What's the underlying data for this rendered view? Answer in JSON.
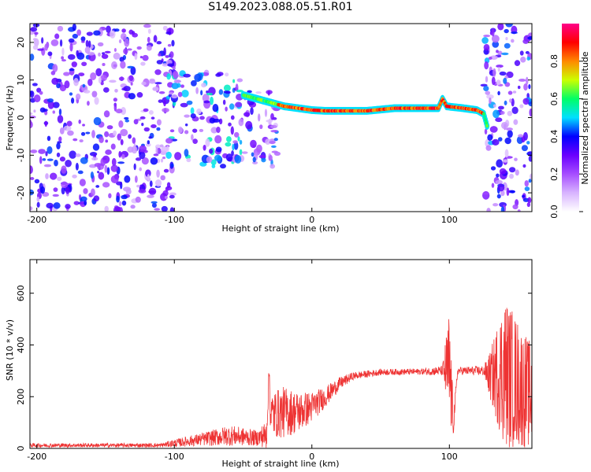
{
  "title": "S149.2023.088.05.51.R01",
  "chart_data": [
    {
      "type": "heatmap",
      "title": "S149.2023.088.05.51.R01",
      "xlabel": "Height of straight line (km)",
      "ylabel": "Frequency (Hz)",
      "xlim": [
        -205,
        160
      ],
      "ylim": [
        -25,
        25
      ],
      "x_ticks": [
        -200,
        -100,
        0,
        100
      ],
      "y_ticks": [
        -20,
        -10,
        0,
        10,
        20
      ],
      "colorbar": {
        "label": "Normalized spectral amplitude",
        "range": [
          0,
          1
        ],
        "ticks": [
          "0.0",
          "0.2",
          "0.4",
          "0.6",
          "0.8"
        ],
        "colors": [
          "#ffffff",
          "#d8b4ff",
          "#a64dff",
          "#6a00ff",
          "#0000ff",
          "#00e0ff",
          "#00ff66",
          "#ccff00",
          "#ff8800",
          "#ff0000",
          "#ff0088"
        ]
      },
      "ridge": {
        "name": "frequency peak",
        "x": [
          -50,
          -45,
          -40,
          -35,
          -30,
          -25,
          -20,
          -10,
          0,
          10,
          20,
          40,
          60,
          80,
          92,
          95,
          98,
          110,
          120,
          125,
          128
        ],
        "y": [
          6,
          5.5,
          5,
          4.5,
          4,
          3.5,
          3,
          2.5,
          2,
          1.8,
          1.8,
          1.8,
          2.5,
          2.5,
          2.5,
          5,
          3,
          2.5,
          2,
          1,
          -3
        ]
      },
      "scatter_regions": [
        {
          "x": [
            -205,
            -100
          ],
          "y": [
            -25,
            25
          ],
          "level": 0.45
        },
        {
          "x": [
            -105,
            -50
          ],
          "y": [
            -13,
            12
          ],
          "level": 0.6
        },
        {
          "x": [
            -50,
            -25
          ],
          "y": [
            -14,
            8
          ],
          "level": 0.5
        },
        {
          "x": [
            125,
            160
          ],
          "y": [
            -25,
            25
          ],
          "level": 0.5
        }
      ]
    },
    {
      "type": "line",
      "xlabel": "Height of straight line (km)",
      "ylabel": "SNR (10 * v/v)",
      "xlim": [
        -205,
        160
      ],
      "ylim": [
        0,
        730
      ],
      "x_ticks": [
        -200,
        -100,
        0,
        100
      ],
      "y_ticks": [
        0,
        200,
        400,
        600
      ],
      "color": "#ee3333",
      "series": [
        {
          "envelope": [
            {
              "x": -205,
              "y": 12,
              "noise": 8
            },
            {
              "x": -110,
              "y": 12,
              "noise": 8
            },
            {
              "x": -100,
              "y": 20,
              "noise": 15
            },
            {
              "x": -80,
              "y": 35,
              "noise": 25
            },
            {
              "x": -60,
              "y": 50,
              "noise": 40
            },
            {
              "x": -40,
              "y": 40,
              "noise": 30
            },
            {
              "x": -33,
              "y": 50,
              "noise": 60
            },
            {
              "x": -31,
              "y": 300,
              "noise": 40
            },
            {
              "x": -30,
              "y": 130,
              "noise": 90
            },
            {
              "x": -20,
              "y": 140,
              "noise": 100
            },
            {
              "x": -10,
              "y": 140,
              "noise": 80
            },
            {
              "x": 0,
              "y": 160,
              "noise": 60
            },
            {
              "x": 10,
              "y": 200,
              "noise": 40
            },
            {
              "x": 20,
              "y": 250,
              "noise": 25
            },
            {
              "x": 30,
              "y": 280,
              "noise": 15
            },
            {
              "x": 50,
              "y": 295,
              "noise": 12
            },
            {
              "x": 80,
              "y": 297,
              "noise": 12
            },
            {
              "x": 95,
              "y": 300,
              "noise": 20
            },
            {
              "x": 100,
              "y": 300,
              "noise": 250
            },
            {
              "x": 103,
              "y": 100,
              "noise": 50
            },
            {
              "x": 106,
              "y": 300,
              "noise": 15
            },
            {
              "x": 125,
              "y": 300,
              "noise": 20
            },
            {
              "x": 130,
              "y": 280,
              "noise": 100
            },
            {
              "x": 140,
              "y": 300,
              "noise": 300
            },
            {
              "x": 150,
              "y": 250,
              "noise": 250
            },
            {
              "x": 160,
              "y": 200,
              "noise": 200
            }
          ]
        }
      ]
    }
  ]
}
